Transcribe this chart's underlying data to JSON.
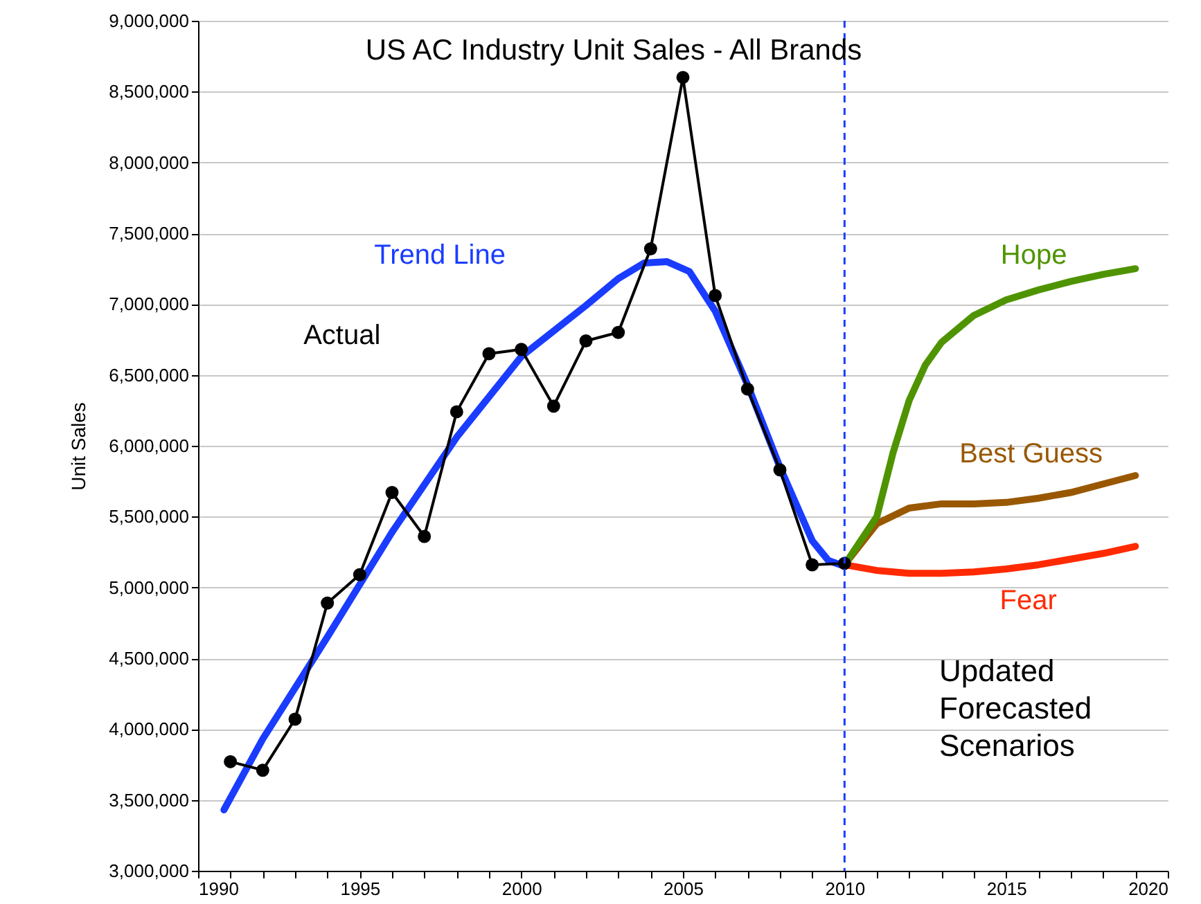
{
  "chart_data": {
    "type": "line",
    "title": "US AC Industry Unit Sales - All Brands",
    "ylabel": "Unit Sales",
    "xlim": [
      1990,
      2020
    ],
    "ylim": [
      3000000,
      9000000
    ],
    "xticks": [
      1990,
      {
        "value": 1991,
        "label": null
      },
      {
        "value": 1992,
        "label": null
      },
      {
        "value": 1993,
        "label": null
      },
      {
        "value": 1994,
        "label": null
      },
      1995,
      {
        "value": 1996,
        "label": null
      },
      {
        "value": 1997,
        "label": null
      },
      {
        "value": 1998,
        "label": null
      },
      {
        "value": 1999,
        "label": null
      },
      2000,
      {
        "value": 2001,
        "label": null
      },
      {
        "value": 2002,
        "label": null
      },
      {
        "value": 2003,
        "label": null
      },
      {
        "value": 2004,
        "label": null
      },
      2005,
      {
        "value": 2006,
        "label": null
      },
      {
        "value": 2007,
        "label": null
      },
      {
        "value": 2008,
        "label": null
      },
      {
        "value": 2009,
        "label": null
      },
      2010,
      {
        "value": 2011,
        "label": null
      },
      {
        "value": 2012,
        "label": null
      },
      {
        "value": 2013,
        "label": null
      },
      {
        "value": 2014,
        "label": null
      },
      2015,
      {
        "value": 2016,
        "label": null
      },
      {
        "value": 2017,
        "label": null
      },
      {
        "value": 2018,
        "label": null
      },
      {
        "value": 2019,
        "label": null
      },
      2020
    ],
    "yticks": [
      {
        "value": 3000000,
        "label": "3,000,000"
      },
      {
        "value": 3500000,
        "label": "3,500,000"
      },
      {
        "value": 4000000,
        "label": "4,000,000"
      },
      {
        "value": 4500000,
        "label": "4,500,000"
      },
      {
        "value": 5000000,
        "label": "5,000,000"
      },
      {
        "value": 5500000,
        "label": "5,500,000"
      },
      {
        "value": 6000000,
        "label": "6,000,000"
      },
      {
        "value": 6500000,
        "label": "6,500,000"
      },
      {
        "value": 7000000,
        "label": "7,000,000"
      },
      {
        "value": 7500000,
        "label": "7,500,000"
      },
      {
        "value": 8000000,
        "label": "8,000,000"
      },
      {
        "value": 8500000,
        "label": "8,500,000"
      },
      {
        "value": 9000000,
        "label": "9,000,000"
      }
    ],
    "grid": "y",
    "legend": false,
    "series": [
      {
        "name": "Actual",
        "color": "#000000",
        "marker": "circle",
        "x": [
          1991,
          1992,
          1993,
          1994,
          1995,
          1996,
          1997,
          1998,
          1999,
          2000,
          2001,
          2002,
          2003,
          2004,
          2005,
          2006,
          2007,
          2008,
          2009,
          2010
        ],
        "values": [
          3770000,
          3710000,
          4070000,
          4890000,
          5090000,
          5670000,
          5360000,
          6240000,
          6650000,
          6680000,
          6280000,
          6740000,
          6800000,
          7390000,
          8600000,
          7060000,
          6400000,
          5830000,
          5160000,
          5170000
        ]
      },
      {
        "name": "Trend Line",
        "color": "#1a3cff",
        "x": [
          1990.8,
          1992,
          1994,
          1996,
          1998,
          2000,
          2002,
          2003,
          2003.8,
          2004.5,
          2005.2,
          2006,
          2007,
          2008,
          2009,
          2009.5,
          2010
        ],
        "values": [
          3430000,
          3930000,
          4650000,
          5390000,
          6060000,
          6630000,
          6990000,
          7180000,
          7290000,
          7300000,
          7230000,
          6950000,
          6430000,
          5850000,
          5330000,
          5190000,
          5150000
        ]
      },
      {
        "name": "Hope",
        "color": "#4f9400",
        "x": [
          2010,
          2011,
          2011.5,
          2012,
          2012.5,
          2013,
          2014,
          2015,
          2016,
          2017,
          2018,
          2019
        ],
        "values": [
          5160000,
          5500000,
          5950000,
          6320000,
          6570000,
          6730000,
          6920000,
          7030000,
          7100000,
          7160000,
          7210000,
          7250000
        ]
      },
      {
        "name": "Best Guess",
        "color": "#995800",
        "x": [
          2010,
          2011,
          2012,
          2013,
          2014,
          2015,
          2016,
          2017,
          2018,
          2019
        ],
        "values": [
          5160000,
          5450000,
          5560000,
          5590000,
          5590000,
          5600000,
          5630000,
          5670000,
          5730000,
          5790000
        ]
      },
      {
        "name": "Fear",
        "color": "#ff2a00",
        "x": [
          2010,
          2011,
          2012,
          2013,
          2014,
          2015,
          2016,
          2017,
          2018,
          2019
        ],
        "values": [
          5160000,
          5120000,
          5100000,
          5100000,
          5110000,
          5130000,
          5160000,
          5200000,
          5240000,
          5290000
        ]
      }
    ],
    "ref_lines": [
      {
        "axis": "x",
        "value": 2010,
        "color": "#1a3cff",
        "line_style": "dashed"
      }
    ],
    "annotations": [
      "Updated Forecasted Scenarios"
    ]
  }
}
